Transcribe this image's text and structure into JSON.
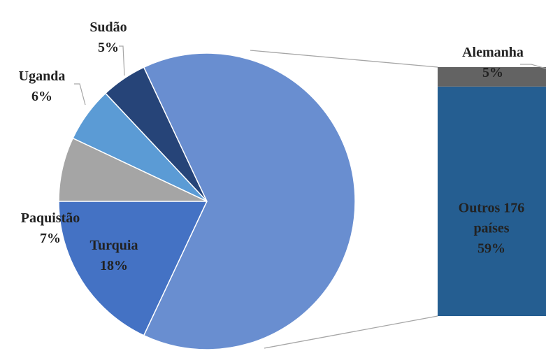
{
  "chart_data": {
    "type": "pie",
    "categories": [
      "Turquia",
      "Paquistão",
      "Uganda",
      "Sudão"
    ],
    "values": [
      18,
      7,
      6,
      5
    ],
    "value_labels": [
      "18%",
      "7%",
      "6%",
      "5%"
    ],
    "colors": [
      "#4472c4",
      "#a5a5a5",
      "#5b9bd5",
      "#264478"
    ],
    "other_color": "#698ed0",
    "breakdown": {
      "categories": [
        "Alemanha",
        "Outros 176 países"
      ],
      "values": [
        5,
        59
      ],
      "value_labels": [
        "5%",
        "59%"
      ],
      "colors": [
        "#636363",
        "#255e91"
      ]
    }
  }
}
